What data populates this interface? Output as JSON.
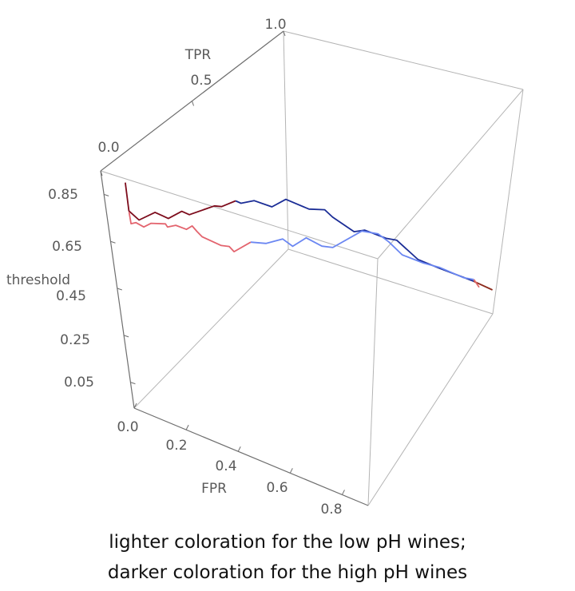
{
  "chart_data": {
    "type": "line3d",
    "axes": {
      "x": {
        "label": "FPR",
        "range": [
          0,
          0.9
        ],
        "ticks": [
          "0.0",
          "0.2",
          "0.4",
          "0.6",
          "0.8"
        ]
      },
      "y": {
        "label": "TPR",
        "range": [
          0,
          1
        ],
        "ticks": [
          "0.0",
          "0.5",
          "1.0"
        ]
      },
      "z": {
        "label": "threshold",
        "range": [
          -0.06,
          0.95
        ],
        "ticks": [
          "0.05",
          "0.25",
          "0.45",
          "0.65",
          "0.85"
        ]
      }
    },
    "series": [
      {
        "name": "high pH wines (darker)",
        "colors": [
          "#7d0c1c",
          "#1b2d96",
          "#8c2a1c"
        ],
        "color_breaks": [
          10,
          25
        ],
        "fpr": [
          0.045,
          0.045,
          0.063,
          0.077,
          0.1,
          0.122,
          0.132,
          0.158,
          0.194,
          0.212,
          0.23,
          0.249,
          0.274,
          0.338,
          0.35,
          0.423,
          0.458,
          0.476,
          0.526,
          0.551,
          0.602,
          0.628,
          0.684,
          0.74,
          0.798,
          0.835,
          0.89
        ],
        "tpr": [
          0.05,
          0.05,
          0.07,
          0.138,
          0.138,
          0.138,
          0.199,
          0.199,
          0.286,
          0.298,
          0.351,
          0.351,
          0.387,
          0.387,
          0.452,
          0.47,
          0.509,
          0.529,
          0.584,
          0.612,
          0.669,
          0.698,
          0.76,
          0.822,
          0.887,
          0.928,
          0.989
        ],
        "threshold": [
          0.889,
          0.768,
          0.724,
          0.72,
          0.716,
          0.712,
          0.708,
          0.704,
          0.7,
          0.696,
          0.693,
          0.69,
          0.687,
          0.684,
          0.677,
          0.649,
          0.632,
          0.592,
          0.507,
          0.502,
          0.442,
          0.421,
          0.307,
          0.239,
          0.17,
          0.126,
          0.054
        ]
      },
      {
        "name": "low pH wines (lighter)",
        "colors": [
          "#e3646e",
          "#6b87f2",
          "#e06a6a"
        ],
        "color_breaks": [
          15,
          29
        ],
        "fpr": [
          0.045,
          0.046,
          0.052,
          0.071,
          0.076,
          0.111,
          0.117,
          0.131,
          0.158,
          0.16,
          0.176,
          0.19,
          0.229,
          0.246,
          0.256,
          0.272,
          0.316,
          0.346,
          0.383,
          0.395,
          0.452,
          0.477,
          0.517,
          0.57,
          0.609,
          0.644,
          0.698,
          0.74,
          0.806,
          0.835,
          0.852
        ],
        "tpr": [
          0.05,
          0.051,
          0.068,
          0.079,
          0.112,
          0.136,
          0.136,
          0.161,
          0.176,
          0.206,
          0.206,
          0.211,
          0.254,
          0.273,
          0.284,
          0.36,
          0.381,
          0.433,
          0.433,
          0.499,
          0.502,
          0.53,
          0.654,
          0.67,
          0.677,
          0.715,
          0.776,
          0.822,
          0.895,
          0.928,
          0.947
        ],
        "threshold": [
          0.763,
          0.713,
          0.71,
          0.692,
          0.689,
          0.686,
          0.675,
          0.672,
          0.656,
          0.652,
          0.634,
          0.614,
          0.564,
          0.554,
          0.528,
          0.524,
          0.521,
          0.516,
          0.498,
          0.493,
          0.476,
          0.459,
          0.455,
          0.45,
          0.423,
          0.349,
          0.284,
          0.243,
          0.16,
          0.134,
          0.089
        ]
      }
    ],
    "caption": [
      "lighter coloration for the low pH wines;",
      "darker coloration for the high pH wines"
    ]
  }
}
